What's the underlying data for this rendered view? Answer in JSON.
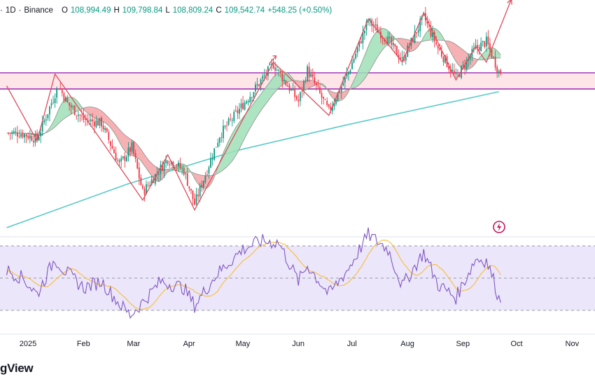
{
  "header": {
    "prefix": "·",
    "interval": "1D",
    "exchange": "Binance",
    "o_label": "O",
    "o_value": "108,994.49",
    "h_label": "H",
    "h_value": "109,798.84",
    "l_label": "L",
    "l_value": "108,809.24",
    "c_label": "C",
    "c_value": "109,542.74",
    "change": "+548.25 (+0.50%)"
  },
  "brand": "gView",
  "colors": {
    "up": "#089981",
    "down": "#f23645",
    "zigzag": "#e04a5a",
    "ribbon_up": "#9fe0b8",
    "ribbon_down": "#f4a3a8",
    "ema200": "#58c9c9",
    "resistance": "#9c27b0",
    "zone": "#fde5e8",
    "rsi": "#7e57c2",
    "rsi_ma": "#f5c04a",
    "rsi_band": "#ece6fa"
  },
  "chart_data": [
    {
      "type": "candlestick",
      "symbol_interval": "1D",
      "exchange": "Binance",
      "x_labels": [
        "2025",
        "Feb",
        "Mar",
        "Apr",
        "May",
        "Jun",
        "Jul",
        "Aug",
        "Sep",
        "Oct",
        "Nov"
      ],
      "last_close": 109542.74,
      "price_series_approx": [
        [
          "2025-01-01",
          94000
        ],
        [
          "2025-01-10",
          92500
        ],
        [
          "2025-01-20",
          104000
        ],
        [
          "2025-01-22",
          106000
        ],
        [
          "2025-01-27",
          101500
        ],
        [
          "2025-02-05",
          97500
        ],
        [
          "2025-02-15",
          96500
        ],
        [
          "2025-02-25",
          86000
        ],
        [
          "2025-03-04",
          90500
        ],
        [
          "2025-03-10",
          79000
        ],
        [
          "2025-03-24",
          87500
        ],
        [
          "2025-04-02",
          84500
        ],
        [
          "2025-04-08",
          76000
        ],
        [
          "2025-04-22",
          93500
        ],
        [
          "2025-05-08",
          103000
        ],
        [
          "2025-05-22",
          111500
        ],
        [
          "2025-06-05",
          102000
        ],
        [
          "2025-06-10",
          110000
        ],
        [
          "2025-06-22",
          99500
        ],
        [
          "2025-07-03",
          109500
        ],
        [
          "2025-07-14",
          122500
        ],
        [
          "2025-07-25",
          117500
        ],
        [
          "2025-08-02",
          112500
        ],
        [
          "2025-08-14",
          123500
        ],
        [
          "2025-08-22",
          115500
        ],
        [
          "2025-09-01",
          108000
        ],
        [
          "2025-09-12",
          115500
        ],
        [
          "2025-09-18",
          117200
        ],
        [
          "2025-09-25",
          109542
        ]
      ],
      "zigzag_approx": [
        [
          "2024-12-24",
          106000
        ],
        [
          "2025-01-10",
          92000
        ],
        [
          "2025-01-20",
          109000
        ],
        [
          "2025-03-10",
          77000
        ],
        [
          "2025-03-24",
          88500
        ],
        [
          "2025-04-08",
          74500
        ],
        [
          "2025-05-22",
          112000
        ],
        [
          "2025-06-22",
          98500
        ],
        [
          "2025-07-14",
          123000
        ],
        [
          "2025-08-02",
          112000
        ],
        [
          "2025-08-14",
          124500
        ],
        [
          "2025-09-01",
          107500
        ],
        [
          "2025-09-12",
          116000
        ],
        [
          "2025-09-18",
          112000
        ],
        [
          "2025-10-02",
          128000
        ]
      ],
      "resistance_zone": [
        105200,
        109300
      ],
      "ema200_approx": [
        [
          "2024-12-24",
          70000
        ],
        [
          "2025-03-01",
          81000
        ],
        [
          "2025-05-01",
          89500
        ],
        [
          "2025-07-01",
          96000
        ],
        [
          "2025-09-25",
          104500
        ]
      ]
    },
    {
      "type": "line",
      "name": "RSI",
      "overbought": 70,
      "midline": 50,
      "oversold": 30,
      "ylim": [
        25,
        80
      ],
      "rsi_series_approx": [
        [
          "2024-12-24",
          55
        ],
        [
          "2025-01-02",
          50
        ],
        [
          "2025-01-10",
          40
        ],
        [
          "2025-01-20",
          62
        ],
        [
          "2025-01-25",
          55
        ],
        [
          "2025-02-05",
          44
        ],
        [
          "2025-02-15",
          48
        ],
        [
          "2025-02-25",
          34
        ],
        [
          "2025-03-03",
          27
        ],
        [
          "2025-03-10",
          35
        ],
        [
          "2025-03-20",
          48
        ],
        [
          "2025-04-02",
          44
        ],
        [
          "2025-04-08",
          33
        ],
        [
          "2025-04-20",
          52
        ],
        [
          "2025-05-05",
          68
        ],
        [
          "2025-05-15",
          73
        ],
        [
          "2025-05-25",
          72
        ],
        [
          "2025-06-05",
          48
        ],
        [
          "2025-06-10",
          58
        ],
        [
          "2025-06-22",
          40
        ],
        [
          "2025-07-03",
          56
        ],
        [
          "2025-07-14",
          77
        ],
        [
          "2025-07-25",
          68
        ],
        [
          "2025-08-02",
          45
        ],
        [
          "2025-08-14",
          66
        ],
        [
          "2025-08-22",
          46
        ],
        [
          "2025-09-01",
          38
        ],
        [
          "2025-09-12",
          62
        ],
        [
          "2025-09-18",
          61
        ],
        [
          "2025-09-22",
          49
        ],
        [
          "2025-09-25",
          37
        ]
      ]
    }
  ]
}
